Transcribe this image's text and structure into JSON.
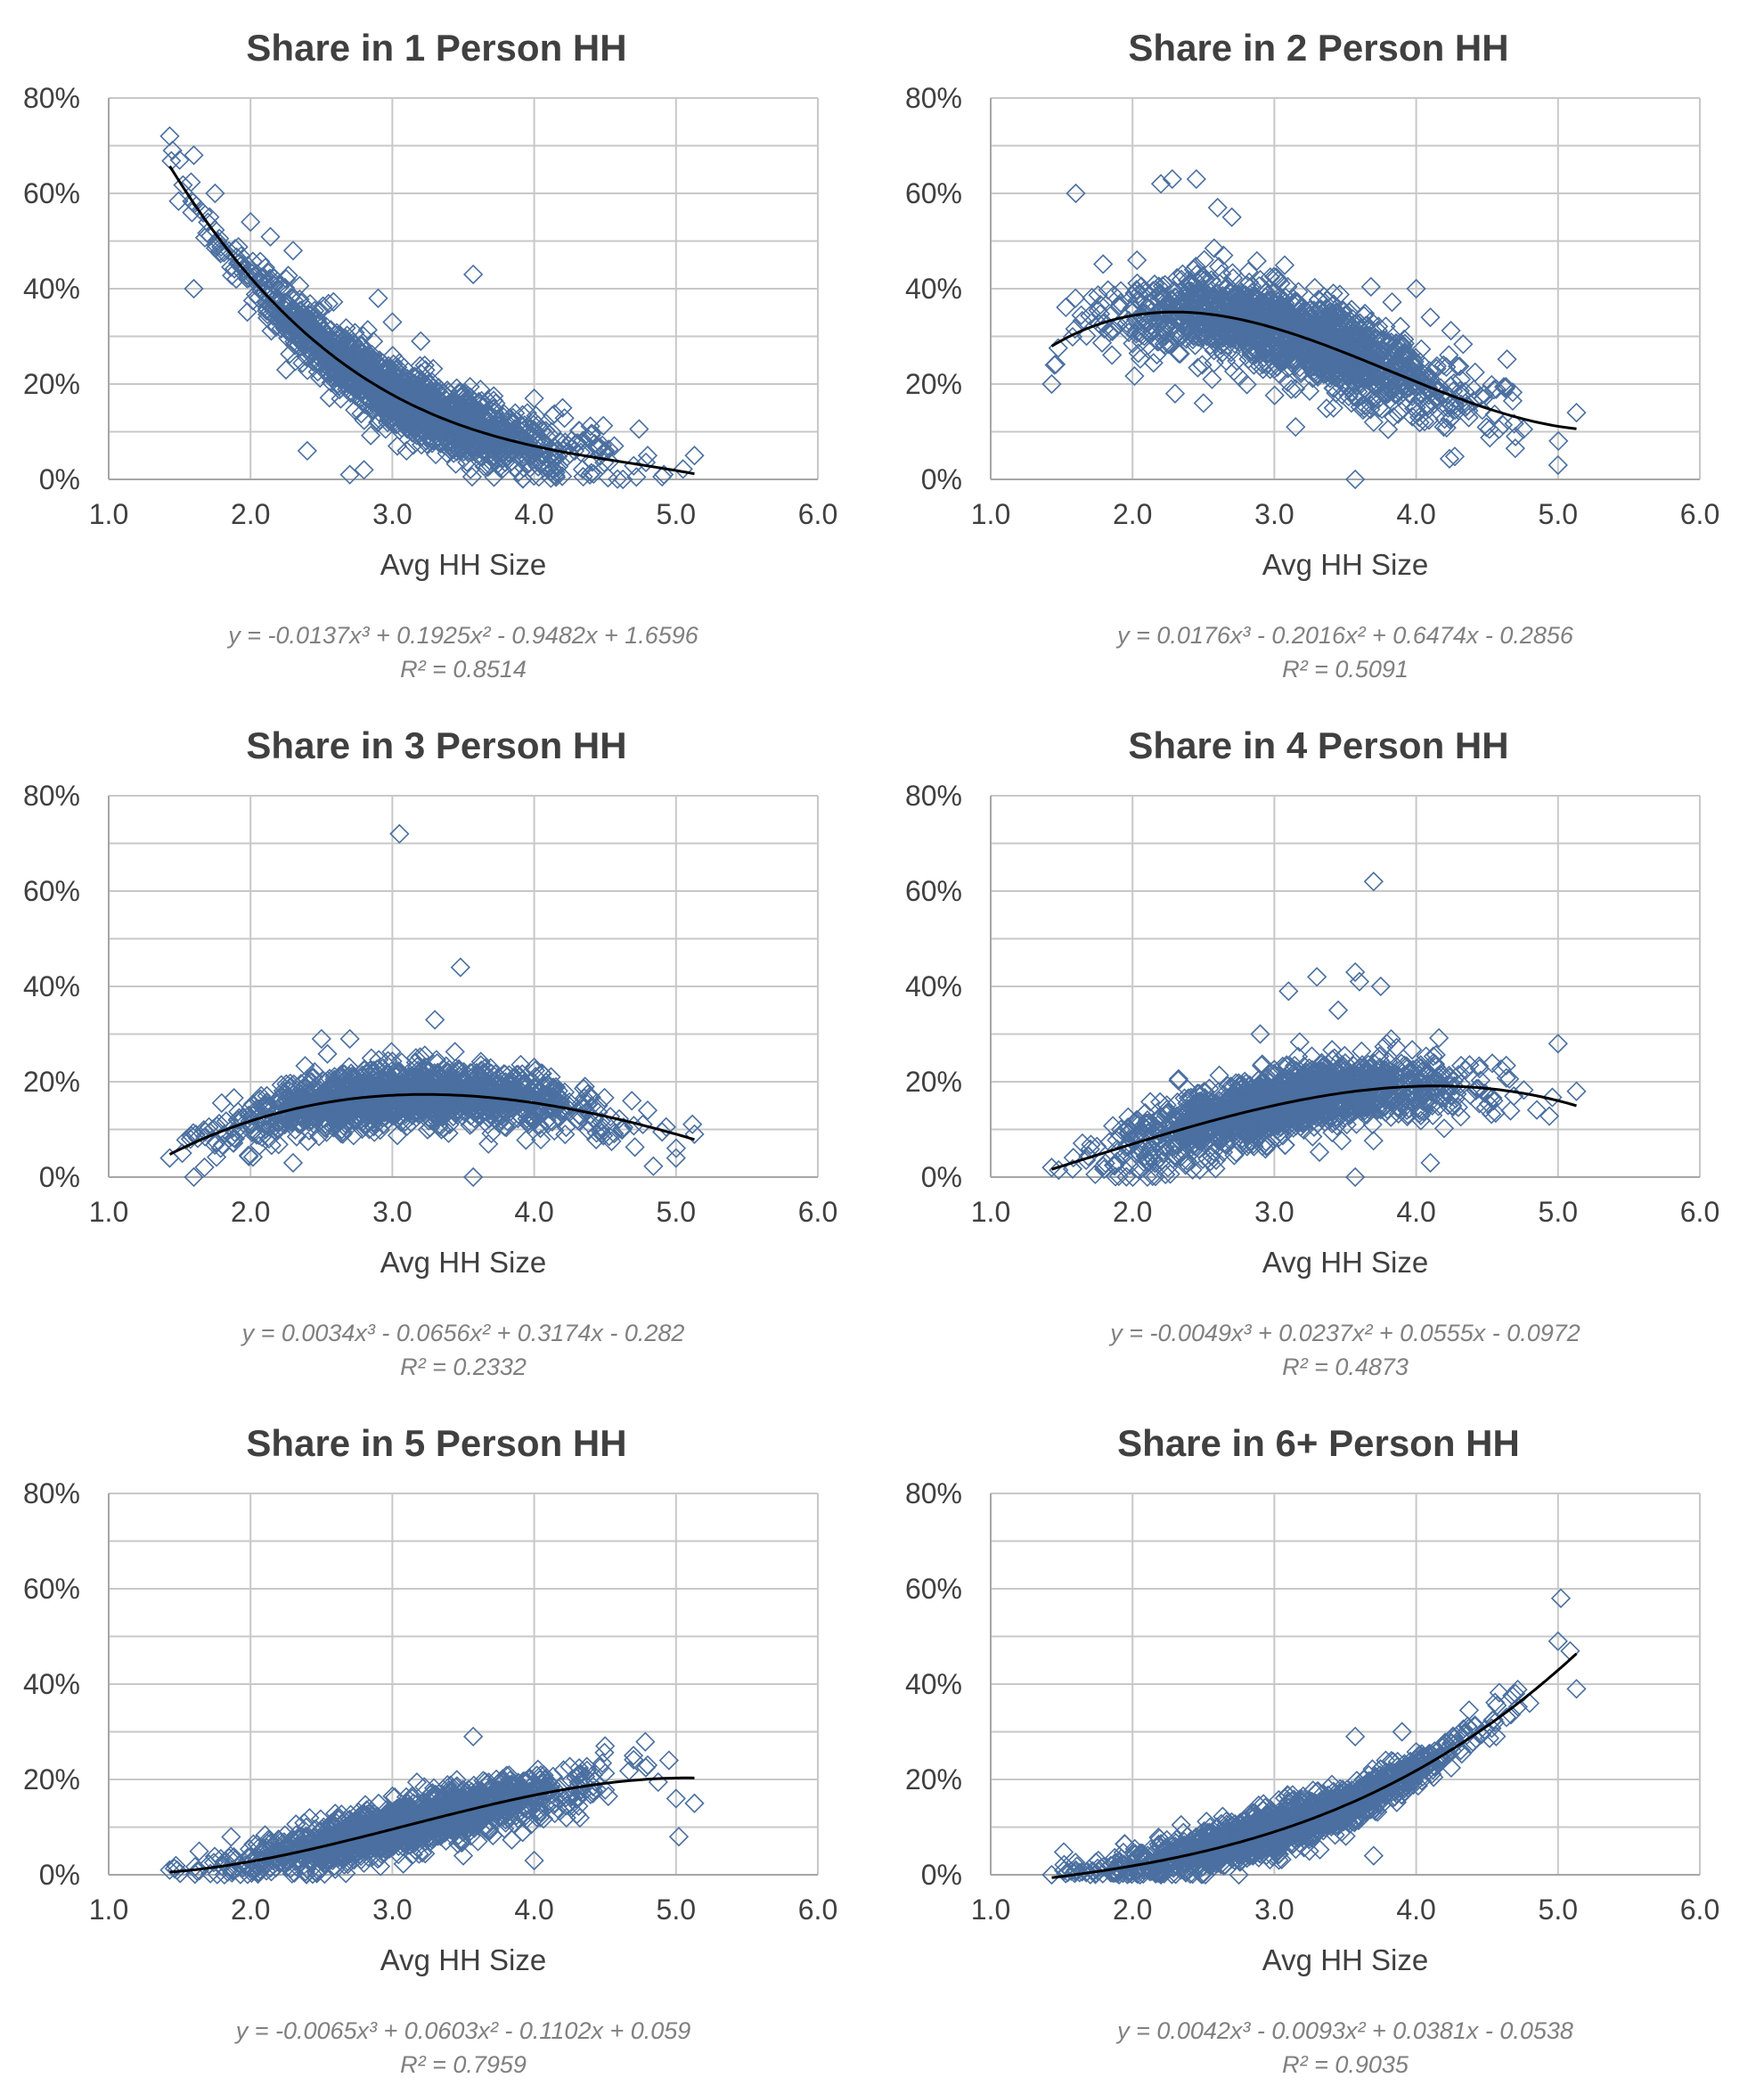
{
  "colors": {
    "marker": "#4a6fa0",
    "trendline": "#000000",
    "grid": "#c8c8c8",
    "text": "#404040",
    "equation": "#808080"
  },
  "chart_data": [
    {
      "type": "scatter",
      "title": "Share in 1 Person HH",
      "xlabel": "Avg HH Size",
      "ylabel": "",
      "xlim": [
        1.0,
        6.0
      ],
      "ylim": [
        0,
        0.8
      ],
      "xticks": [
        "1.0",
        "2.0",
        "3.0",
        "4.0",
        "5.0",
        "6.0"
      ],
      "yticks": [
        "0%",
        "20%",
        "40%",
        "60%",
        "80%"
      ],
      "grid": true,
      "marker": "diamond",
      "x_range": [
        1.43,
        5.13
      ],
      "trendline": {
        "type": "polynomial",
        "order": 3,
        "coefficients": [
          -0.0137,
          0.1925,
          -0.9482,
          1.6596
        ]
      },
      "equation": "y = -0.0137x³ + 0.1925x² - 0.9482x + 1.6596",
      "r2": "R² = 0.8514",
      "points": [
        [
          1.43,
          0.72
        ],
        [
          1.45,
          0.69
        ],
        [
          1.5,
          0.67
        ],
        [
          1.6,
          0.68
        ],
        [
          1.75,
          0.6
        ],
        [
          1.6,
          0.4
        ],
        [
          2.0,
          0.54
        ],
        [
          2.3,
          0.48
        ],
        [
          2.25,
          0.23
        ],
        [
          2.4,
          0.06
        ],
        [
          2.7,
          0.01
        ],
        [
          2.9,
          0.38
        ],
        [
          3.0,
          0.33
        ],
        [
          3.2,
          0.29
        ],
        [
          3.57,
          0.43
        ],
        [
          4.0,
          0.17
        ],
        [
          4.2,
          0.15
        ],
        [
          4.5,
          0.06
        ],
        [
          4.8,
          0.05
        ],
        [
          5.13,
          0.05
        ],
        [
          2.8,
          0.02
        ],
        [
          3.1,
          0.06
        ]
      ],
      "cloud_noise": 0.035,
      "cloud_count": 1500,
      "cloud_seed": 11
    },
    {
      "type": "scatter",
      "title": "Share in 2 Person HH",
      "xlabel": "Avg HH Size",
      "ylabel": "",
      "xlim": [
        1.0,
        6.0
      ],
      "ylim": [
        0,
        0.8
      ],
      "xticks": [
        "1.0",
        "2.0",
        "3.0",
        "4.0",
        "5.0",
        "6.0"
      ],
      "yticks": [
        "0%",
        "20%",
        "40%",
        "60%",
        "80%"
      ],
      "grid": true,
      "marker": "diamond",
      "x_range": [
        1.43,
        5.13
      ],
      "trendline": {
        "type": "polynomial",
        "order": 3,
        "coefficients": [
          0.0176,
          -0.2016,
          0.6474,
          -0.2856
        ]
      },
      "equation": "y = 0.0176x³ - 0.2016x² + 0.6474x - 0.2856",
      "r2": "R² = 0.5091",
      "points": [
        [
          1.6,
          0.6
        ],
        [
          2.2,
          0.62
        ],
        [
          2.28,
          0.63
        ],
        [
          2.45,
          0.63
        ],
        [
          2.6,
          0.57
        ],
        [
          2.7,
          0.55
        ],
        [
          1.43,
          0.2
        ],
        [
          1.45,
          0.24
        ],
        [
          2.5,
          0.16
        ],
        [
          3.15,
          0.11
        ],
        [
          3.57,
          0.0
        ],
        [
          4.0,
          0.4
        ],
        [
          4.1,
          0.34
        ],
        [
          5.0,
          0.03
        ],
        [
          5.13,
          0.14
        ],
        [
          3.7,
          0.12
        ],
        [
          4.7,
          0.09
        ],
        [
          2.3,
          0.18
        ]
      ],
      "cloud_noise": 0.045,
      "cloud_count": 1500,
      "cloud_seed": 23
    },
    {
      "type": "scatter",
      "title": "Share in 3 Person HH",
      "xlabel": "Avg HH Size",
      "ylabel": "",
      "xlim": [
        1.0,
        6.0
      ],
      "ylim": [
        0,
        0.8
      ],
      "xticks": [
        "1.0",
        "2.0",
        "3.0",
        "4.0",
        "5.0",
        "6.0"
      ],
      "yticks": [
        "0%",
        "20%",
        "40%",
        "60%",
        "80%"
      ],
      "grid": true,
      "marker": "diamond",
      "x_range": [
        1.43,
        5.13
      ],
      "trendline": {
        "type": "polynomial",
        "order": 3,
        "coefficients": [
          0.0034,
          -0.0656,
          0.3174,
          -0.282
        ]
      },
      "equation": "y = 0.0034x³ - 0.0656x² + 0.3174x - 0.282",
      "r2": "R² = 0.2332",
      "points": [
        [
          3.05,
          0.72
        ],
        [
          3.48,
          0.44
        ],
        [
          3.3,
          0.33
        ],
        [
          2.5,
          0.29
        ],
        [
          2.7,
          0.29
        ],
        [
          1.6,
          0.0
        ],
        [
          2.3,
          0.03
        ],
        [
          3.57,
          0.0
        ],
        [
          5.0,
          0.04
        ],
        [
          5.13,
          0.09
        ],
        [
          1.43,
          0.04
        ],
        [
          4.8,
          0.14
        ],
        [
          4.0,
          0.23
        ]
      ],
      "cloud_noise": 0.03,
      "cloud_count": 1500,
      "cloud_seed": 37
    },
    {
      "type": "scatter",
      "title": "Share in 4 Person HH",
      "xlabel": "Avg HH Size",
      "ylabel": "",
      "xlim": [
        1.0,
        6.0
      ],
      "ylim": [
        0,
        0.8
      ],
      "xticks": [
        "1.0",
        "2.0",
        "3.0",
        "4.0",
        "5.0",
        "6.0"
      ],
      "yticks": [
        "0%",
        "20%",
        "40%",
        "60%",
        "80%"
      ],
      "grid": true,
      "marker": "diamond",
      "x_range": [
        1.43,
        5.13
      ],
      "trendline": {
        "type": "polynomial",
        "order": 3,
        "coefficients": [
          -0.0049,
          0.0237,
          0.0555,
          -0.0972
        ]
      },
      "equation": "y = -0.0049x³ + 0.0237x² + 0.0555x - 0.0972",
      "r2": "R² = 0.4873",
      "points": [
        [
          3.7,
          0.62
        ],
        [
          3.57,
          0.43
        ],
        [
          3.3,
          0.42
        ],
        [
          3.1,
          0.39
        ],
        [
          3.75,
          0.4
        ],
        [
          3.6,
          0.41
        ],
        [
          3.45,
          0.35
        ],
        [
          2.9,
          0.3
        ],
        [
          3.57,
          0.0
        ],
        [
          4.1,
          0.03
        ],
        [
          5.0,
          0.28
        ],
        [
          5.13,
          0.18
        ],
        [
          1.43,
          0.02
        ],
        [
          2.25,
          0.02
        ]
      ],
      "cloud_noise": 0.035,
      "cloud_count": 1500,
      "cloud_seed": 51
    },
    {
      "type": "scatter",
      "title": "Share in 5 Person HH",
      "xlabel": "Avg HH Size",
      "ylabel": "",
      "xlim": [
        1.0,
        6.0
      ],
      "ylim": [
        0,
        0.8
      ],
      "xticks": [
        "1.0",
        "2.0",
        "3.0",
        "4.0",
        "5.0",
        "6.0"
      ],
      "yticks": [
        "0%",
        "20%",
        "40%",
        "60%",
        "80%"
      ],
      "grid": true,
      "marker": "diamond",
      "x_range": [
        1.43,
        5.13
      ],
      "trendline": {
        "type": "polynomial",
        "order": 3,
        "coefficients": [
          -0.0065,
          0.0603,
          -0.1102,
          0.059
        ]
      },
      "equation": "y = -0.0065x³ + 0.0603x² - 0.1102x + 0.059",
      "r2": "R² = 0.7959",
      "points": [
        [
          3.57,
          0.29
        ],
        [
          4.5,
          0.27
        ],
        [
          4.7,
          0.25
        ],
        [
          4.8,
          0.23
        ],
        [
          5.0,
          0.16
        ],
        [
          5.02,
          0.08
        ],
        [
          5.13,
          0.15
        ],
        [
          4.0,
          0.03
        ],
        [
          3.5,
          0.04
        ],
        [
          1.43,
          0.01
        ],
        [
          4.95,
          0.24
        ]
      ],
      "cloud_noise": 0.025,
      "cloud_count": 1500,
      "cloud_seed": 67
    },
    {
      "type": "scatter",
      "title": "Share in 6+ Person HH",
      "xlabel": "Avg HH Size",
      "ylabel": "",
      "xlim": [
        1.0,
        6.0
      ],
      "ylim": [
        0,
        0.8
      ],
      "xticks": [
        "1.0",
        "2.0",
        "3.0",
        "4.0",
        "5.0",
        "6.0"
      ],
      "yticks": [
        "0%",
        "20%",
        "40%",
        "60%",
        "80%"
      ],
      "grid": true,
      "marker": "diamond",
      "x_range": [
        1.43,
        5.13
      ],
      "trendline": {
        "type": "polynomial",
        "order": 3,
        "coefficients": [
          0.0042,
          -0.0093,
          0.0381,
          -0.0538
        ]
      },
      "equation": "y = 0.0042x³ - 0.0093x² + 0.0381x - 0.0538",
      "r2": "R² = 0.9035",
      "points": [
        [
          5.02,
          0.58
        ],
        [
          5.0,
          0.49
        ],
        [
          5.13,
          0.39
        ],
        [
          4.8,
          0.36
        ],
        [
          4.7,
          0.38
        ],
        [
          3.57,
          0.29
        ],
        [
          3.9,
          0.3
        ],
        [
          3.7,
          0.04
        ],
        [
          1.43,
          0.0
        ],
        [
          2.75,
          0.0
        ],
        [
          1.6,
          0.01
        ]
      ],
      "cloud_noise": 0.022,
      "cloud_count": 1500,
      "cloud_seed": 79
    }
  ]
}
